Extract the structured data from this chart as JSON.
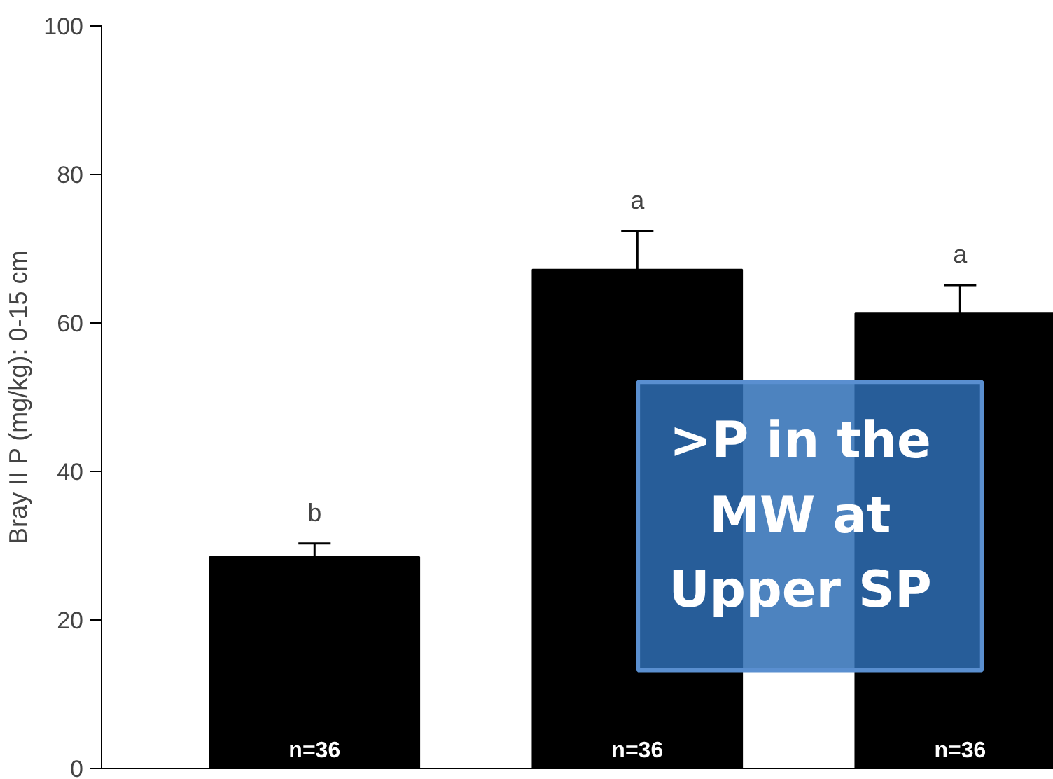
{
  "chart_data": {
    "type": "bar",
    "ylabel": "Bray II P (mg/kg): 0-15 cm",
    "categories": [
      null,
      null,
      null
    ],
    "values": [
      28.5,
      67.2,
      61.3
    ],
    "errors": [
      [
        28.5,
        30.3
      ],
      [
        67.2,
        72.4
      ],
      [
        61.3,
        65.1
      ]
    ],
    "color": "#000000",
    "ylim": [
      0,
      100
    ],
    "yticks": [
      0,
      20,
      40,
      60,
      80,
      100
    ],
    "grid": false,
    "annotations": [
      "b",
      "a",
      "a",
      "n=36",
      "n=36",
      "n=36",
      ">P in the MW at Upper SP"
    ]
  }
}
